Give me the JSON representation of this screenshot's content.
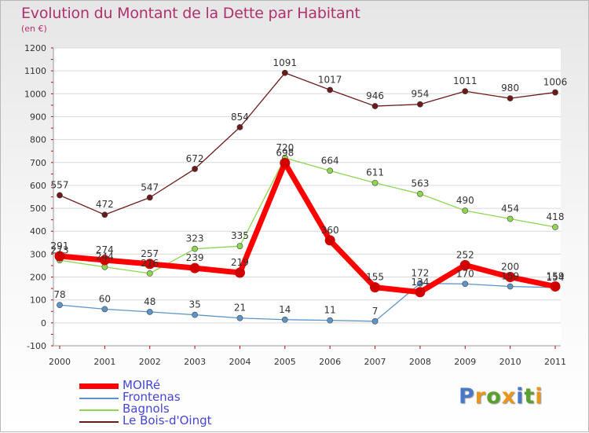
{
  "chart_data": {
    "type": "line",
    "title": "Evolution du Montant de la Dette par Habitant",
    "subtitle": "(en €)",
    "categories": [
      "2000",
      "2001",
      "2002",
      "2003",
      "2004",
      "2005",
      "2006",
      "2007",
      "2008",
      "2009",
      "2010",
      "2011"
    ],
    "ylim": [
      -100,
      1200
    ],
    "yticks": [
      -100,
      0,
      100,
      200,
      300,
      400,
      500,
      600,
      700,
      800,
      900,
      1000,
      1100,
      1200
    ],
    "grid": "horizontal",
    "legend_position": "bottom-left",
    "series": [
      {
        "name": "Le Bois-d'Oingt",
        "color": "#6b1a1a",
        "values": [
          557,
          472,
          547,
          672,
          854,
          1091,
          1017,
          946,
          954,
          1011,
          980,
          1006
        ]
      },
      {
        "name": "Bagnols",
        "color": "#8ed650",
        "values": [
          273,
          244,
          216,
          323,
          335,
          720,
          664,
          611,
          563,
          490,
          454,
          418
        ]
      },
      {
        "name": "Frontenas",
        "color": "#5c94c8",
        "values": [
          78,
          60,
          48,
          35,
          21,
          14,
          11,
          7,
          172,
          170,
          159,
          154
        ]
      },
      {
        "name": "MOIRé",
        "color": "#ff0000",
        "values": [
          291,
          274,
          257,
          239,
          219,
          698,
          360,
          155,
          134,
          252,
          200,
          159
        ]
      }
    ],
    "legend_order": [
      "MOIRé",
      "Frontenas",
      "Bagnols",
      "Le Bois-d'Oingt"
    ]
  },
  "logo": {
    "letters": [
      "P",
      "r",
      "o",
      "x",
      "i",
      "t",
      "i"
    ],
    "colors": [
      "#4a78c8",
      "#e8961e",
      "#5aa02c",
      "#e8961e",
      "#4a78c8",
      "#5aa02c",
      "#e8961e"
    ]
  }
}
